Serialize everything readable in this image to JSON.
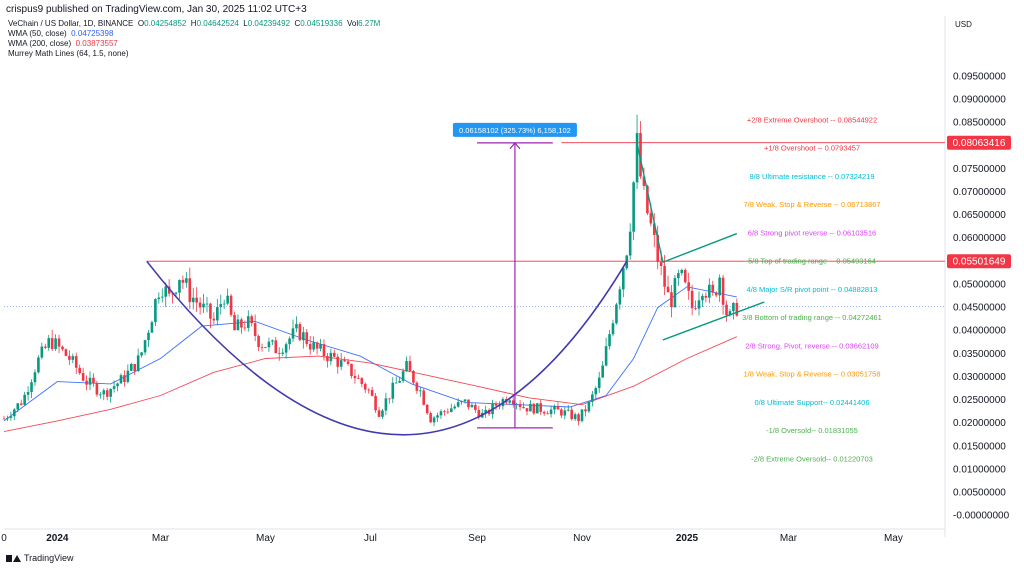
{
  "header": {
    "published": "crispus9 published on TradingView.com, Jan 30, 2025 11:02 UTC+3"
  },
  "legend": {
    "symbol": "VeChain / US Dollar, 1D, BINANCE",
    "o_label": "O",
    "o_value": "0.04254852",
    "h_label": "H",
    "h_value": "0.04642524",
    "l_label": "L",
    "l_value": "0.04239492",
    "c_label": "C",
    "c_value": "0.04519336",
    "vol_label": "Vol",
    "vol_value": "6.27M",
    "wma50_label": "WMA (50, close)",
    "wma50_value": "0.04725398",
    "wma200_label": "WMA (200, close)",
    "wma200_value": "0.03873557",
    "murrey_label": "Murrey Math Lines (64, 1.5, none)"
  },
  "footer": {
    "brand": "TradingView"
  },
  "colors": {
    "up": "#089981",
    "down": "#f23645",
    "wma50": "#2962ff",
    "wma200": "#f23645",
    "cup": "#3f3ab0",
    "measure": "#9c27b0",
    "channel": "#089981",
    "price_tag": "#f23645"
  },
  "chart_data": {
    "type": "candlestick",
    "title": "VeChain / US Dollar, 1D, BINANCE",
    "y_currency": "USD",
    "ylim": [
      -0.002,
      0.105
    ],
    "xlim": [
      "2023-12-01",
      "2025-05-31"
    ],
    "y_ticks": [
      "0.09500000",
      "0.09000000",
      "0.08500000",
      "0.08000000",
      "0.07500000",
      "0.07000000",
      "0.06500000",
      "0.06000000",
      "0.05500000",
      "0.05000000",
      "0.04500000",
      "0.04000000",
      "0.03500000",
      "0.03000000",
      "0.02500000",
      "0.02000000",
      "0.01500000",
      "0.01000000",
      "0.00500000",
      "-0.00000000"
    ],
    "y_tick_values": [
      0.095,
      0.09,
      0.085,
      0.08,
      0.075,
      0.07,
      0.065,
      0.06,
      0.055,
      0.05,
      0.045,
      0.04,
      0.035,
      0.03,
      0.025,
      0.02,
      0.015,
      0.01,
      0.005,
      0.0
    ],
    "x_ticks": [
      {
        "date": "2023-12-01",
        "label": "0"
      },
      {
        "date": "2024-01-01",
        "label": "2024"
      },
      {
        "date": "2024-03-01",
        "label": "Mar"
      },
      {
        "date": "2024-05-01",
        "label": "May"
      },
      {
        "date": "2024-07-01",
        "label": "Jul"
      },
      {
        "date": "2024-09-01",
        "label": "Sep"
      },
      {
        "date": "2024-11-01",
        "label": "Nov"
      },
      {
        "date": "2025-01-01",
        "label": "2025"
      },
      {
        "date": "2025-03-01",
        "label": "Mar"
      },
      {
        "date": "2025-05-01",
        "label": "May"
      }
    ],
    "price_path": [
      [
        "2023-12-01",
        0.021
      ],
      [
        "2023-12-12",
        0.025
      ],
      [
        "2023-12-20",
        0.033
      ],
      [
        "2023-12-28",
        0.038
      ],
      [
        "2024-01-08",
        0.034
      ],
      [
        "2024-01-18",
        0.029
      ],
      [
        "2024-01-28",
        0.0265
      ],
      [
        "2024-02-08",
        0.0295
      ],
      [
        "2024-02-18",
        0.034
      ],
      [
        "2024-02-24",
        0.042
      ],
      [
        "2024-03-01",
        0.0505
      ],
      [
        "2024-03-06",
        0.047
      ],
      [
        "2024-03-12",
        0.052
      ],
      [
        "2024-03-18",
        0.048
      ],
      [
        "2024-03-25",
        0.045
      ],
      [
        "2024-04-01",
        0.042
      ],
      [
        "2024-04-07",
        0.048
      ],
      [
        "2024-04-13",
        0.04
      ],
      [
        "2024-04-20",
        0.042
      ],
      [
        "2024-04-28",
        0.0375
      ],
      [
        "2024-05-08",
        0.036
      ],
      [
        "2024-05-20",
        0.04
      ],
      [
        "2024-05-30",
        0.036
      ],
      [
        "2024-06-10",
        0.034
      ],
      [
        "2024-06-20",
        0.031
      ],
      [
        "2024-06-30",
        0.027
      ],
      [
        "2024-07-06",
        0.0225
      ],
      [
        "2024-07-15",
        0.028
      ],
      [
        "2024-07-22",
        0.032
      ],
      [
        "2024-07-30",
        0.027
      ],
      [
        "2024-08-05",
        0.021
      ],
      [
        "2024-08-15",
        0.023
      ],
      [
        "2024-08-25",
        0.0245
      ],
      [
        "2024-09-05",
        0.0215
      ],
      [
        "2024-09-12",
        0.024
      ],
      [
        "2024-09-20",
        0.026
      ],
      [
        "2024-09-28",
        0.0235
      ],
      [
        "2024-10-10",
        0.023
      ],
      [
        "2024-10-20",
        0.0225
      ],
      [
        "2024-10-30",
        0.021
      ],
      [
        "2024-11-05",
        0.024
      ],
      [
        "2024-11-12",
        0.03
      ],
      [
        "2024-11-20",
        0.045
      ],
      [
        "2024-11-28",
        0.06
      ],
      [
        "2024-12-03",
        0.08
      ],
      [
        "2024-12-06",
        0.07
      ],
      [
        "2024-12-10",
        0.064
      ],
      [
        "2024-12-16",
        0.054
      ],
      [
        "2024-12-22",
        0.046
      ],
      [
        "2024-12-28",
        0.052
      ],
      [
        "2025-01-04",
        0.045
      ],
      [
        "2025-01-10",
        0.05
      ],
      [
        "2025-01-16",
        0.047
      ],
      [
        "2025-01-20",
        0.052
      ],
      [
        "2025-01-25",
        0.042
      ],
      [
        "2025-01-30",
        0.0452
      ]
    ],
    "series": [
      {
        "name": "WMA (50, close)",
        "color": "#2962ff",
        "points": [
          [
            "2023-12-01",
            0.0205
          ],
          [
            "2024-01-01",
            0.029
          ],
          [
            "2024-02-01",
            0.0285
          ],
          [
            "2024-03-01",
            0.034
          ],
          [
            "2024-03-25",
            0.041
          ],
          [
            "2024-04-25",
            0.042
          ],
          [
            "2024-05-25",
            0.038
          ],
          [
            "2024-06-25",
            0.0345
          ],
          [
            "2024-07-25",
            0.0285
          ],
          [
            "2024-08-25",
            0.0245
          ],
          [
            "2024-09-25",
            0.024
          ],
          [
            "2024-10-25",
            0.0235
          ],
          [
            "2024-11-15",
            0.026
          ],
          [
            "2024-12-01",
            0.034
          ],
          [
            "2024-12-15",
            0.045
          ],
          [
            "2025-01-01",
            0.0495
          ],
          [
            "2025-01-30",
            0.0473
          ]
        ]
      },
      {
        "name": "WMA (200, close)",
        "color": "#f23645",
        "points": [
          [
            "2023-12-01",
            0.0182
          ],
          [
            "2024-01-01",
            0.0205
          ],
          [
            "2024-02-01",
            0.023
          ],
          [
            "2024-03-01",
            0.026
          ],
          [
            "2024-04-01",
            0.031
          ],
          [
            "2024-05-01",
            0.034
          ],
          [
            "2024-06-01",
            0.0345
          ],
          [
            "2024-07-01",
            0.033
          ],
          [
            "2024-08-01",
            0.0305
          ],
          [
            "2024-09-01",
            0.028
          ],
          [
            "2024-10-01",
            0.0255
          ],
          [
            "2024-11-01",
            0.024
          ],
          [
            "2024-12-01",
            0.028
          ],
          [
            "2025-01-01",
            0.034
          ],
          [
            "2025-01-30",
            0.0387
          ]
        ]
      }
    ],
    "murrey_lines": [
      {
        "text": "+2/8 Extreme Overshoot --  0.08544922",
        "value": 0.08544922,
        "color": "#f23645"
      },
      {
        "text": "+1/8 Overshoot --  0.0793457",
        "value": 0.0793457,
        "color": "#f23645"
      },
      {
        "text": "8/8 Ultimate resistance --  0.07324219",
        "value": 0.07324219,
        "color": "#00bcd4"
      },
      {
        "text": "7/8 Weak, Stop & Reverse --  0.06713867",
        "value": 0.06713867,
        "color": "#ff9800"
      },
      {
        "text": "6/8 Strong pivot reverse --  0.06103516",
        "value": 0.06103516,
        "color": "#e040fb"
      },
      {
        "text": "5/8 Top of trading range --  0.05493164",
        "value": 0.05493164,
        "color": "#4caf50"
      },
      {
        "text": "4/8 Major S/R pivot point --  0.04882813",
        "value": 0.04882813,
        "color": "#00bcd4"
      },
      {
        "text": "3/8 Bottom of trading range --  0.04272461",
        "value": 0.04272461,
        "color": "#4caf50"
      },
      {
        "text": "2/8 Strong, Pivot, reverse --  0.03662109",
        "value": 0.03662109,
        "color": "#e040fb"
      },
      {
        "text": "1/8 Weak, Stop & Reverse --  0.03051758",
        "value": 0.03051758,
        "color": "#ff9800"
      },
      {
        "text": "0/8 Ultimate Support--  0.02441406",
        "value": 0.02441406,
        "color": "#00bcd4"
      },
      {
        "text": "-1/8 Oversold--  0.01831055",
        "value": 0.01831055,
        "color": "#4caf50"
      },
      {
        "text": "-2/8 Extreme Oversold--  0.01220703",
        "value": 0.01220703,
        "color": "#4caf50"
      }
    ],
    "horizontal_levels": [
      {
        "value": 0.08063416,
        "label": "0.08063416",
        "color": "#f23645"
      },
      {
        "value": 0.05501649,
        "label": "0.05501649",
        "color": "#f23645"
      }
    ],
    "current_price": 0.04519336,
    "measure": {
      "label": "0.06158102 (325.73%) 6,158,102",
      "from_date": "2024-09-01",
      "to_date": "2024-10-15",
      "low": 0.019,
      "high": 0.0806
    },
    "cup_curve": {
      "start": [
        "2024-02-22",
        0.055
      ],
      "bottom": [
        "2024-07-20",
        0.0175
      ],
      "end": [
        "2024-11-27",
        0.055
      ]
    },
    "channel": {
      "upper": [
        [
          "2024-12-18",
          0.0548
        ],
        [
          "2025-01-30",
          0.061
        ]
      ],
      "lower": [
        [
          "2024-12-18",
          0.038
        ],
        [
          "2025-02-15",
          0.0462
        ]
      ],
      "left_leg": [
        [
          "2024-12-03",
          0.0805
        ],
        [
          "2024-12-18",
          0.0548
        ]
      ]
    }
  }
}
